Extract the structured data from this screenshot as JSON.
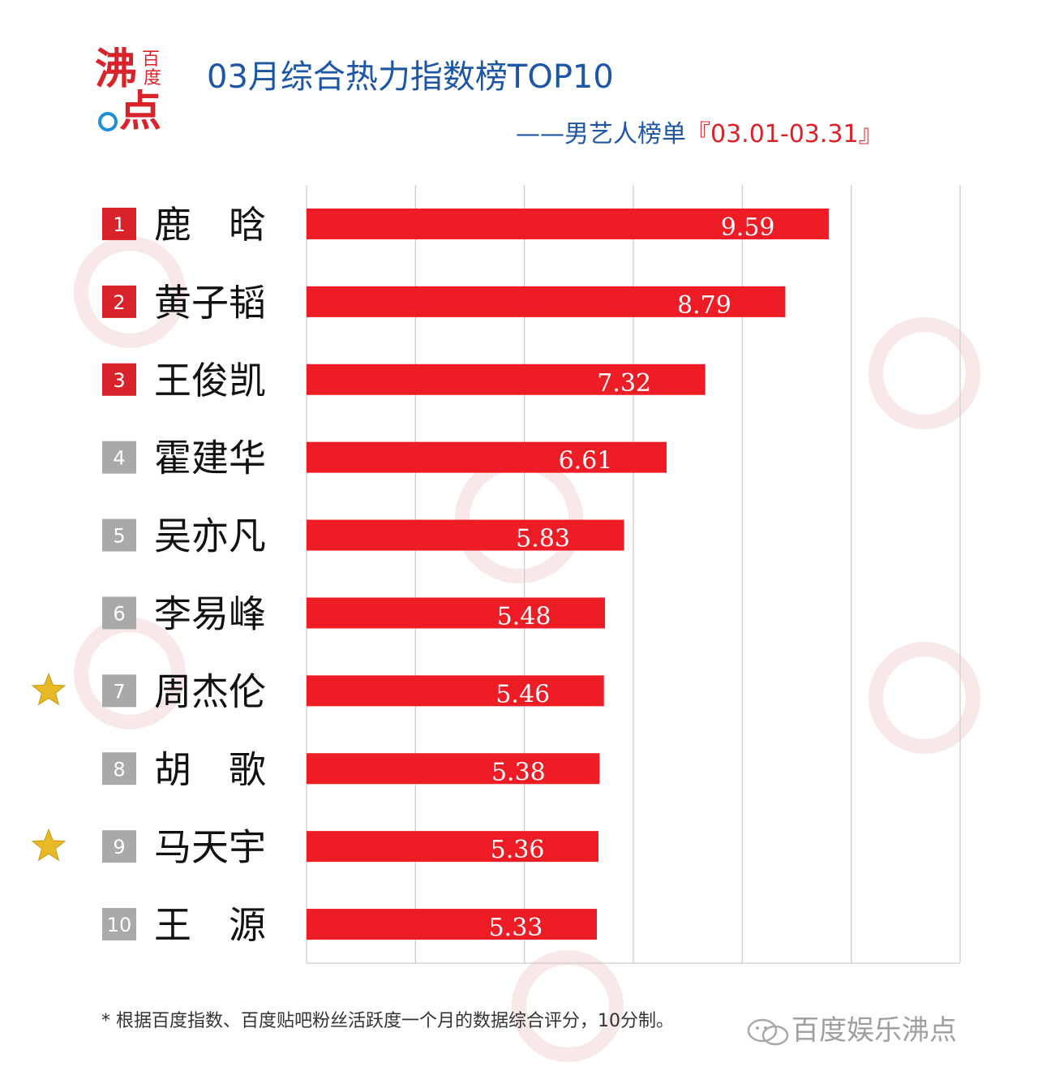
{
  "header": {
    "logo_text_main": "沸点",
    "logo_text_side": "百度",
    "title": "03月综合热力指数榜TOP10",
    "subtitle_prefix": "——男艺人榜单",
    "subtitle_dates": "『03.01-03.31』"
  },
  "colors": {
    "bar": "#ee1c24",
    "rank_top3": "#d9232b",
    "rank_rest": "#a9a9a9",
    "title": "#1e56a6",
    "star": "#e8b926"
  },
  "chart_data": {
    "type": "bar",
    "orientation": "horizontal",
    "title": "03月综合热力指数榜TOP10",
    "subtitle": "——男艺人榜单『03.01-03.31』",
    "xlim": [
      0,
      12
    ],
    "grid": true,
    "categories": [
      "鹿　晗",
      "黄子韬",
      "王俊凯",
      "霍建华",
      "吴亦凡",
      "李易峰",
      "周杰伦",
      "胡　歌",
      "马天宇",
      "王　源"
    ],
    "ranks": [
      "1",
      "2",
      "3",
      "4",
      "5",
      "6",
      "7",
      "8",
      "9",
      "10"
    ],
    "values": [
      9.59,
      8.79,
      7.32,
      6.61,
      5.83,
      5.48,
      5.46,
      5.38,
      5.36,
      5.33
    ],
    "value_labels": [
      "9.59",
      "8.79",
      "7.32",
      "6.61",
      "5.83",
      "5.48",
      "5.46",
      "5.38",
      "5.36",
      "5.33"
    ],
    "starred": [
      false,
      false,
      false,
      false,
      false,
      false,
      true,
      false,
      true,
      false
    ]
  },
  "footer": {
    "note": "* 根据百度指数、百度贴吧粉丝活跃度一个月的数据综合评分，10分制。",
    "brand": "百度娱乐沸点",
    "brand_icon": "wechat-icon"
  }
}
